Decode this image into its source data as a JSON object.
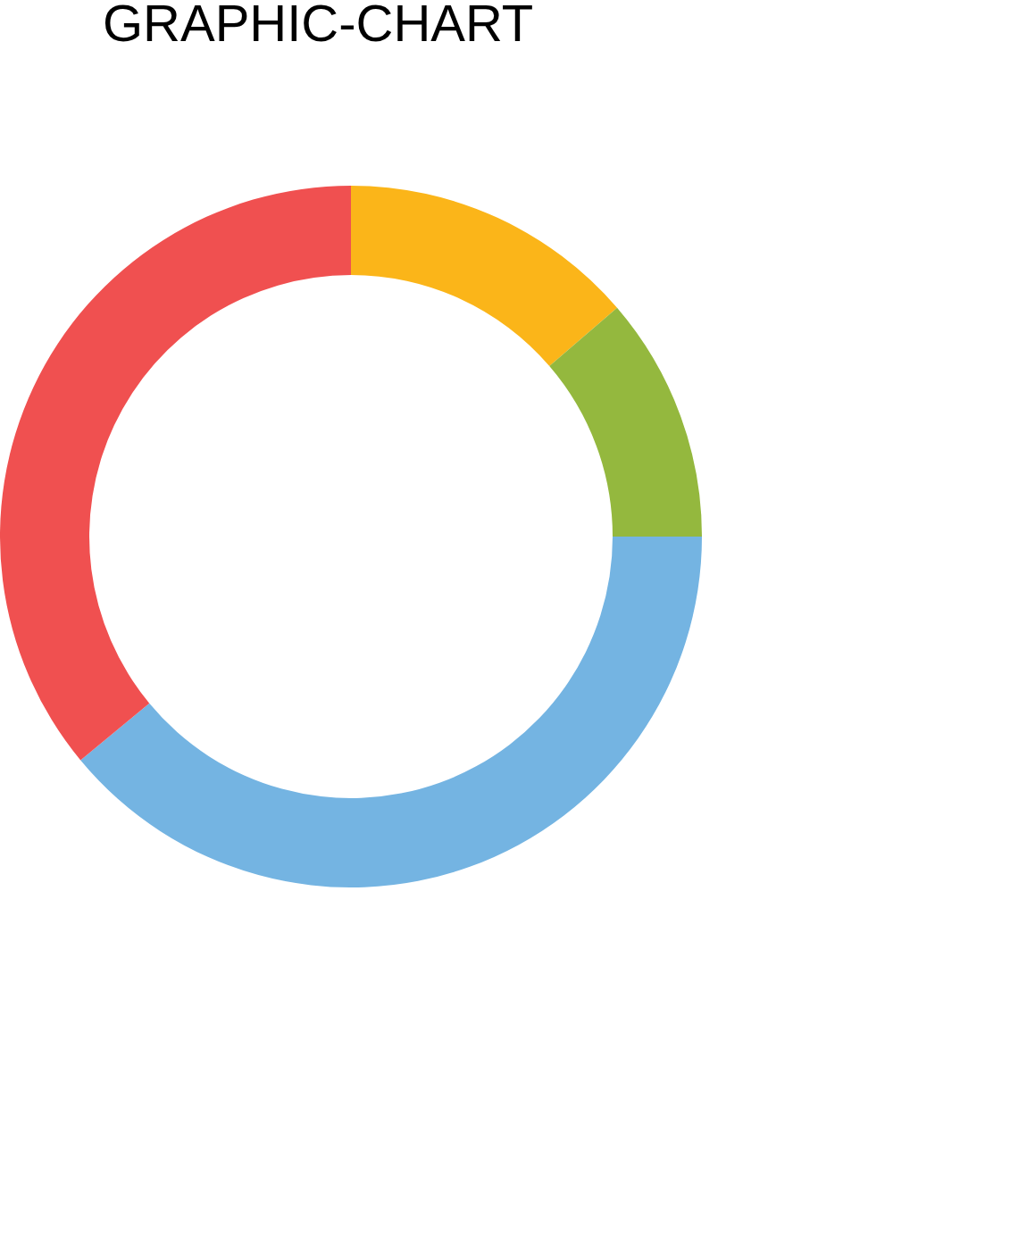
{
  "chart_data": {
    "type": "donut",
    "title": "GRAPHIC-CHART",
    "categories": [
      null,
      null,
      null,
      null
    ],
    "values": [
      13.7,
      11.3,
      39,
      36
    ],
    "colors": [
      "#fbb519",
      "#94b83e",
      "#74b4e2",
      "#f05050"
    ],
    "legend": false
  }
}
